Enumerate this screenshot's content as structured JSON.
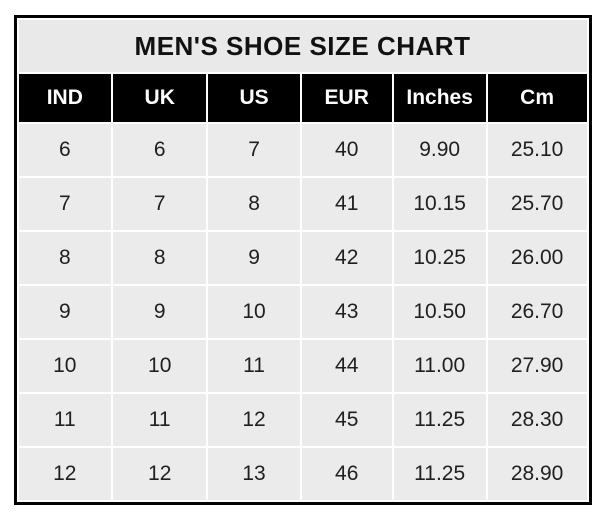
{
  "title": "MEN'S SHOE SIZE CHART",
  "table": {
    "headers": [
      "IND",
      "UK",
      "US",
      "EUR",
      "Inches",
      "Cm"
    ],
    "rows": [
      [
        "6",
        "6",
        "7",
        "40",
        "9.90",
        "25.10"
      ],
      [
        "7",
        "7",
        "8",
        "41",
        "10.15",
        "25.70"
      ],
      [
        "8",
        "8",
        "9",
        "42",
        "10.25",
        "26.00"
      ],
      [
        "9",
        "9",
        "10",
        "43",
        "10.50",
        "26.70"
      ],
      [
        "10",
        "10",
        "11",
        "44",
        "11.00",
        "27.90"
      ],
      [
        "11",
        "11",
        "12",
        "45",
        "11.25",
        "28.30"
      ],
      [
        "12",
        "12",
        "13",
        "46",
        "11.25",
        "28.90"
      ]
    ]
  },
  "chart_data": {
    "type": "table",
    "title": "MEN'S SHOE SIZE CHART",
    "columns": [
      "IND",
      "UK",
      "US",
      "EUR",
      "Inches",
      "Cm"
    ],
    "rows": [
      [
        6,
        6,
        7,
        40,
        9.9,
        25.1
      ],
      [
        7,
        7,
        8,
        41,
        10.15,
        25.7
      ],
      [
        8,
        8,
        9,
        42,
        10.25,
        26.0
      ],
      [
        9,
        9,
        10,
        43,
        10.5,
        26.7
      ],
      [
        10,
        10,
        11,
        44,
        11.0,
        27.9
      ],
      [
        11,
        11,
        12,
        45,
        11.25,
        28.3
      ],
      [
        12,
        12,
        13,
        46,
        11.25,
        28.9
      ]
    ]
  },
  "colors": {
    "outer_border": "#000000",
    "title_bg": "#e9e9e9",
    "header_bg": "#000000",
    "header_text": "#fdfdfb",
    "cell_bg": "#ebebeb",
    "cell_text": "#202020",
    "gridline": "#ffffff",
    "page_bg": "#ffffff"
  }
}
